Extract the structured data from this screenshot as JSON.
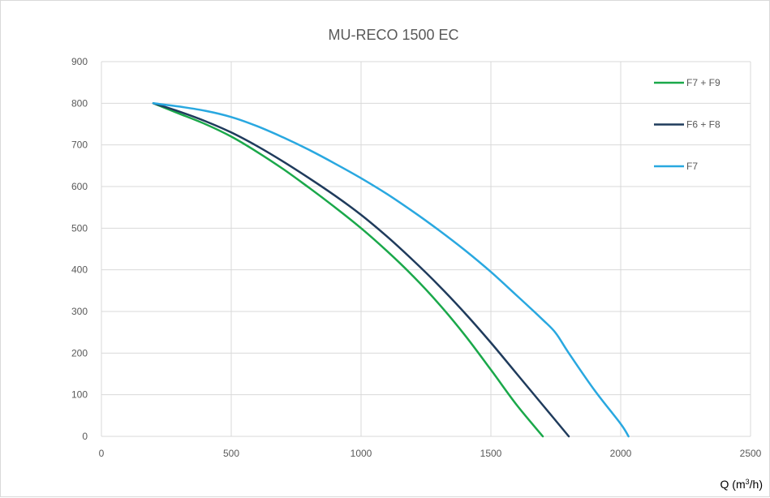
{
  "chart_data": {
    "type": "line",
    "title": "MU-RECO 1500 EC",
    "xlabel": "Q (m",
    "xlabel_sup": "3",
    "xlabel_suffix": "/h)",
    "ylabel": "",
    "xlim": [
      0,
      2500
    ],
    "ylim": [
      0,
      900
    ],
    "xticks": [
      0,
      500,
      1000,
      1500,
      2000,
      2500
    ],
    "yticks": [
      0,
      100,
      200,
      300,
      400,
      500,
      600,
      700,
      800,
      900
    ],
    "grid": true,
    "legend_position": "right",
    "series": [
      {
        "name": "F7 + F9",
        "color": "#1aa84a",
        "points": [
          [
            200,
            800
          ],
          [
            300,
            775
          ],
          [
            400,
            750
          ],
          [
            500,
            720
          ],
          [
            600,
            683
          ],
          [
            700,
            642
          ],
          [
            800,
            597
          ],
          [
            900,
            550
          ],
          [
            1000,
            500
          ],
          [
            1100,
            445
          ],
          [
            1200,
            385
          ],
          [
            1300,
            318
          ],
          [
            1400,
            243
          ],
          [
            1500,
            160
          ],
          [
            1600,
            75
          ],
          [
            1700,
            0
          ]
        ]
      },
      {
        "name": "F6 + F8",
        "color": "#1f3b5c",
        "points": [
          [
            200,
            800
          ],
          [
            300,
            780
          ],
          [
            400,
            757
          ],
          [
            500,
            730
          ],
          [
            600,
            697
          ],
          [
            700,
            660
          ],
          [
            800,
            620
          ],
          [
            900,
            578
          ],
          [
            1000,
            532
          ],
          [
            1100,
            480
          ],
          [
            1200,
            423
          ],
          [
            1300,
            362
          ],
          [
            1400,
            296
          ],
          [
            1500,
            225
          ],
          [
            1600,
            150
          ],
          [
            1700,
            75
          ],
          [
            1800,
            0
          ]
        ]
      },
      {
        "name": "F7",
        "color": "#29a8e0",
        "points": [
          [
            200,
            800
          ],
          [
            300,
            792
          ],
          [
            400,
            782
          ],
          [
            500,
            767
          ],
          [
            600,
            745
          ],
          [
            700,
            718
          ],
          [
            800,
            688
          ],
          [
            900,
            655
          ],
          [
            1000,
            620
          ],
          [
            1100,
            582
          ],
          [
            1200,
            540
          ],
          [
            1300,
            495
          ],
          [
            1400,
            447
          ],
          [
            1500,
            395
          ],
          [
            1600,
            338
          ],
          [
            1700,
            280
          ],
          [
            1750,
            248
          ],
          [
            1800,
            200
          ],
          [
            1900,
            110
          ],
          [
            2000,
            30
          ],
          [
            2030,
            0
          ]
        ]
      }
    ]
  }
}
